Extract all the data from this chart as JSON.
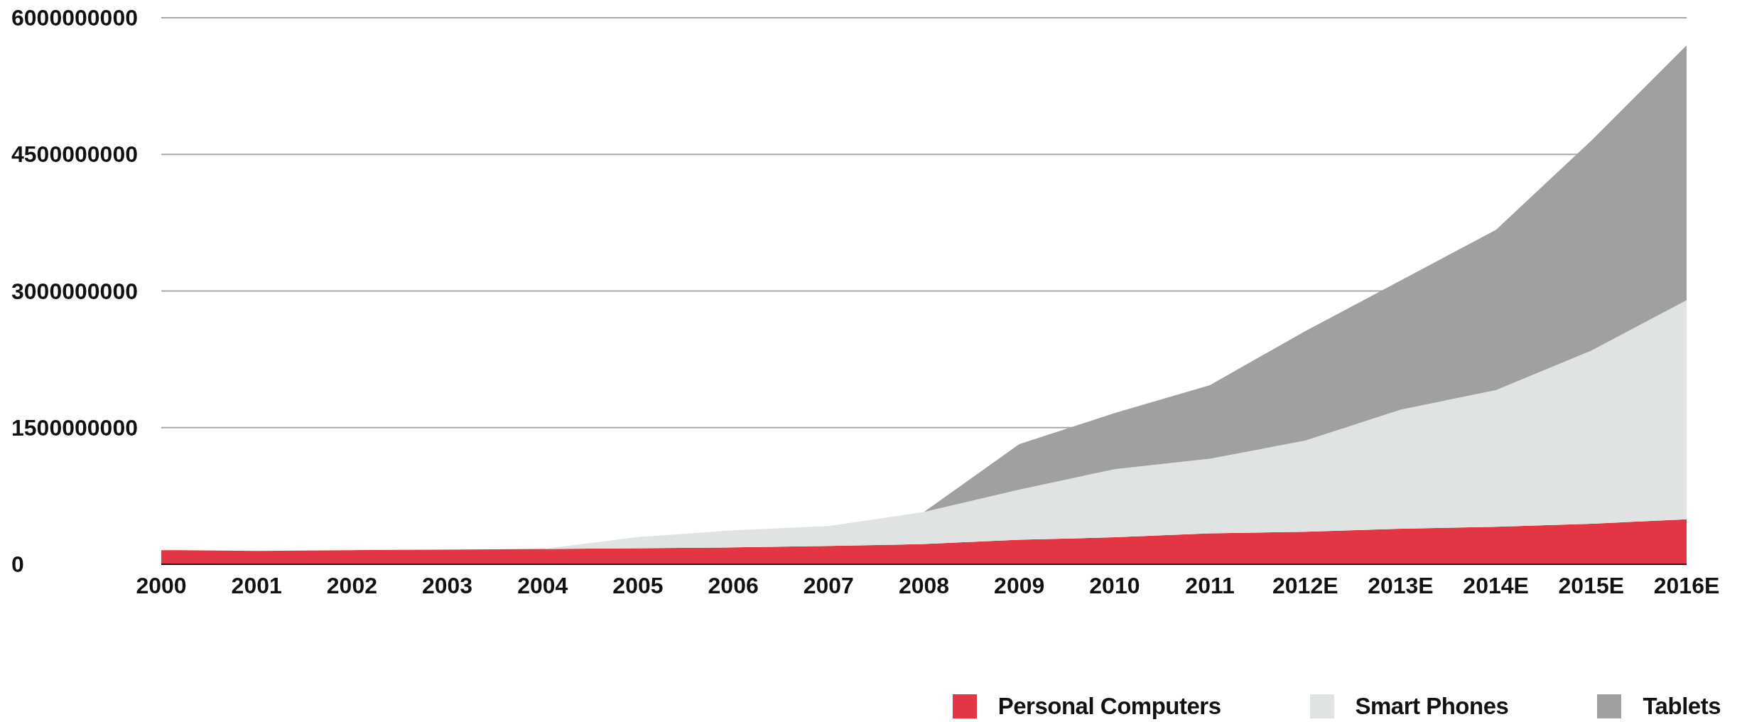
{
  "chart_data": {
    "type": "area",
    "stacked": true,
    "categories": [
      "2000",
      "2001",
      "2002",
      "2003",
      "2004",
      "2005",
      "2006",
      "2007",
      "2008",
      "2009",
      "2010",
      "2011",
      "2012E",
      "2013E",
      "2014E",
      "2015E",
      "2016E"
    ],
    "series": [
      {
        "name": "Personal Computers",
        "color": "#e33645",
        "values": [
          155000000,
          147000000,
          155000000,
          160000000,
          168000000,
          176000000,
          185000000,
          200000000,
          222000000,
          270000000,
          296000000,
          340000000,
          357000000,
          390000000,
          412000000,
          445000000,
          494000000
        ]
      },
      {
        "name": "Smart Phones",
        "color": "#e0e3e4",
        "values": [
          0,
          0,
          0,
          0,
          0,
          122000000,
          188000000,
          220000000,
          351000000,
          549000000,
          748000000,
          819000000,
          1000000000,
          1307000000,
          1500000000,
          1900000000,
          2404000000
        ]
      },
      {
        "name": "Tablets",
        "color": "#a0a0a0",
        "values": [
          0,
          0,
          0,
          0,
          0,
          0,
          0,
          0,
          0,
          499000000,
          615000000,
          808000000,
          1203000000,
          1418000000,
          1759000000,
          2306000000,
          2799000000
        ]
      }
    ],
    "ylim": [
      0,
      6000000000
    ],
    "yticks": [
      0,
      1500000000,
      3000000000,
      4500000000,
      6000000000
    ],
    "grid": "y",
    "legend": "bottom right"
  }
}
